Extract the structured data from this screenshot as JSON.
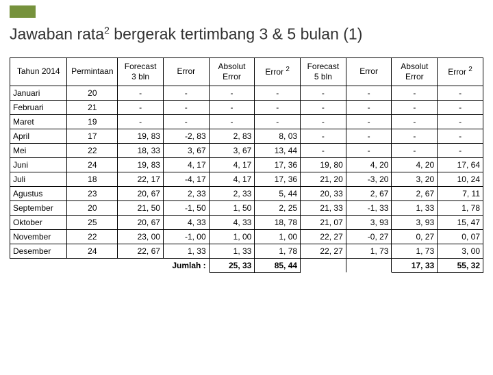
{
  "accent_color": "#76923c",
  "title_html": "Jawaban rata<sup>2</sup> bergerak tertimbang 3 & 5 bulan (1)",
  "columns": [
    "Tahun 2014",
    "Permintaan",
    "Forecast 3 bln",
    "Error",
    "Absolut Error",
    "Error 2",
    "Forecast 5 bln",
    "Error",
    "Absolut Error",
    "Error 2"
  ],
  "col_classes": [
    "col0",
    "col1",
    "colx",
    "colx",
    "colx",
    "colx",
    "colx",
    "colx",
    "colx",
    "colx"
  ],
  "rows": [
    {
      "month": "Januari",
      "demand": "20",
      "v": [
        "-",
        "-",
        "-",
        "-",
        "-",
        "-",
        "-",
        "-"
      ]
    },
    {
      "month": "Februari",
      "demand": "21",
      "v": [
        "-",
        "-",
        "-",
        "-",
        "-",
        "-",
        "-",
        "-"
      ]
    },
    {
      "month": "Maret",
      "demand": "19",
      "v": [
        "-",
        "-",
        "-",
        "-",
        "-",
        "-",
        "-",
        "-"
      ]
    },
    {
      "month": "April",
      "demand": "17",
      "v": [
        "19, 83",
        "-2, 83",
        "2, 83",
        "8, 03",
        "-",
        "-",
        "-",
        "-"
      ]
    },
    {
      "month": "Mei",
      "demand": "22",
      "v": [
        "18, 33",
        "3, 67",
        "3, 67",
        "13, 44",
        "-",
        "-",
        "-",
        "-"
      ]
    },
    {
      "month": "Juni",
      "demand": "24",
      "v": [
        "19, 83",
        "4, 17",
        "4, 17",
        "17, 36",
        "19, 80",
        "4, 20",
        "4, 20",
        "17, 64"
      ]
    },
    {
      "month": "Juli",
      "demand": "18",
      "v": [
        "22, 17",
        "-4, 17",
        "4, 17",
        "17, 36",
        "21, 20",
        "-3, 20",
        "3, 20",
        "10, 24"
      ]
    },
    {
      "month": "Agustus",
      "demand": "23",
      "v": [
        "20, 67",
        "2, 33",
        "2, 33",
        "5, 44",
        "20, 33",
        "2, 67",
        "2, 67",
        "7, 11"
      ]
    },
    {
      "month": "September",
      "demand": "20",
      "v": [
        "21, 50",
        "-1, 50",
        "1, 50",
        "2, 25",
        "21, 33",
        "-1, 33",
        "1, 33",
        "1, 78"
      ]
    },
    {
      "month": "Oktober",
      "demand": "25",
      "v": [
        "20, 67",
        "4, 33",
        "4, 33",
        "18, 78",
        "21, 07",
        "3, 93",
        "3, 93",
        "15, 47"
      ]
    },
    {
      "month": "November",
      "demand": "22",
      "v": [
        "23, 00",
        "-1, 00",
        "1, 00",
        "1, 00",
        "22, 27",
        "-0, 27",
        "0, 27",
        "0, 07"
      ]
    },
    {
      "month": "Desember",
      "demand": "24",
      "v": [
        "22, 67",
        "1, 33",
        "1, 33",
        "1, 78",
        "22, 27",
        "1, 73",
        "1, 73",
        "3, 00"
      ]
    }
  ],
  "total": {
    "label": "Jumlah :",
    "cells": [
      "25, 33",
      "85, 44",
      "",
      "",
      "17, 33",
      "55, 32"
    ]
  }
}
